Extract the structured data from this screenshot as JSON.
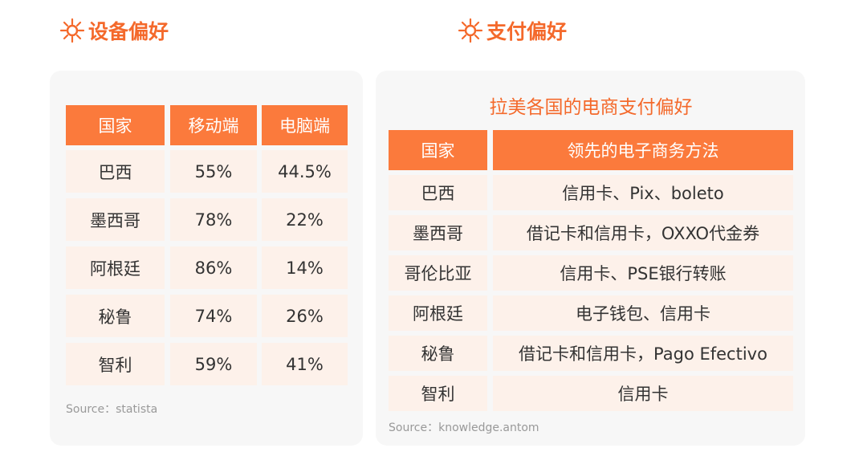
{
  "left": {
    "title": "设备偏好",
    "table": {
      "header": [
        "国家",
        "移动端",
        "电脑端"
      ],
      "rows": [
        [
          "巴西",
          "55%",
          "44.5%"
        ],
        [
          "墨西哥",
          "78%",
          "22%"
        ],
        [
          "阿根廷",
          "86%",
          "14%"
        ],
        [
          "秘鲁",
          "74%",
          "26%"
        ],
        [
          "智利",
          "59%",
          "41%"
        ]
      ]
    },
    "source": "Source：statista"
  },
  "right": {
    "title": "支付偏好",
    "table": {
      "caption": "拉美各国的电商支付偏好",
      "header": [
        "国家",
        "领先的电子商务方法"
      ],
      "rows": [
        [
          "巴西",
          "信用卡、Pix、boleto"
        ],
        [
          "墨西哥",
          "借记卡和信用卡，OXXO代金券"
        ],
        [
          "哥伦比亚",
          "信用卡、PSE银行转账"
        ],
        [
          "阿根廷",
          "电子钱包、信用卡"
        ],
        [
          "秘鲁",
          "借记卡和信用卡，Pago Efectivo"
        ],
        [
          "智利",
          "信用卡"
        ]
      ]
    },
    "source": "Source：knowledge.antom"
  }
}
